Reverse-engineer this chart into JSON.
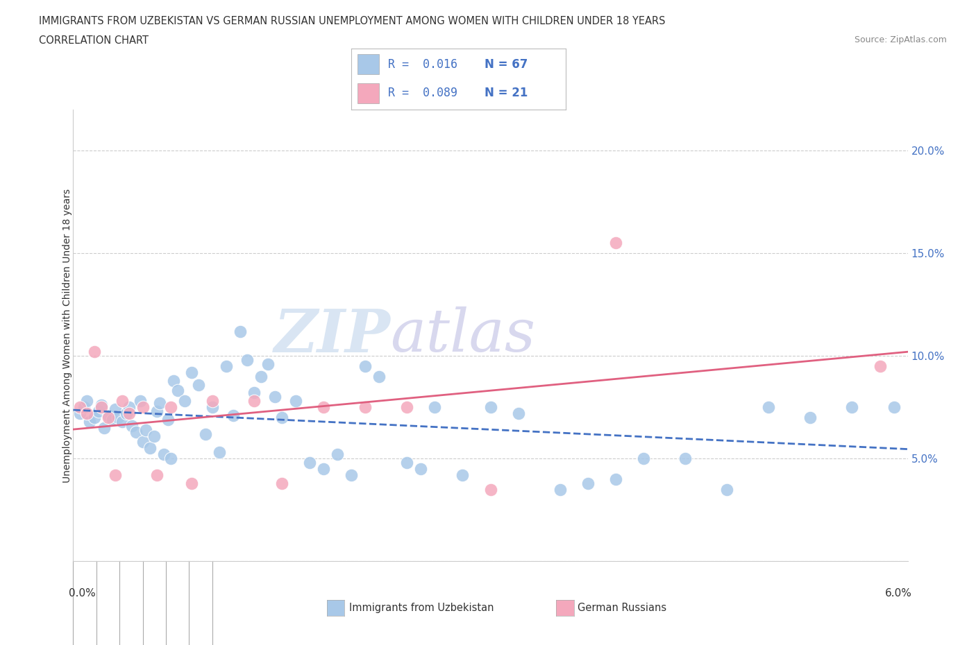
{
  "title_line1": "IMMIGRANTS FROM UZBEKISTAN VS GERMAN RUSSIAN UNEMPLOYMENT AMONG WOMEN WITH CHILDREN UNDER 18 YEARS",
  "title_line2": "CORRELATION CHART",
  "source": "Source: ZipAtlas.com",
  "ylabel": "Unemployment Among Women with Children Under 18 years",
  "xlim": [
    0.0,
    6.0
  ],
  "ylim": [
    0.0,
    22.0
  ],
  "legend_r1": "R = 0.016",
  "legend_n1": "N = 67",
  "legend_r2": "R = 0.089",
  "legend_n2": "N = 21",
  "color_uzbek": "#a8c8e8",
  "color_german": "#f4a8bc",
  "color_uzbek_line": "#4472c4",
  "color_german_line": "#e06080",
  "watermark_zip": "ZIP",
  "watermark_atlas": "atlas",
  "uzbek_x": [
    0.05,
    0.08,
    0.1,
    0.12,
    0.15,
    0.18,
    0.2,
    0.22,
    0.25,
    0.28,
    0.3,
    0.32,
    0.35,
    0.38,
    0.4,
    0.42,
    0.45,
    0.48,
    0.5,
    0.52,
    0.55,
    0.58,
    0.6,
    0.62,
    0.65,
    0.68,
    0.7,
    0.72,
    0.75,
    0.8,
    0.85,
    0.9,
    0.95,
    1.0,
    1.05,
    1.1,
    1.15,
    1.2,
    1.25,
    1.3,
    1.35,
    1.4,
    1.45,
    1.5,
    1.6,
    1.7,
    1.8,
    1.9,
    2.0,
    2.1,
    2.2,
    2.4,
    2.5,
    2.6,
    2.8,
    3.0,
    3.2,
    3.5,
    3.7,
    3.9,
    4.1,
    4.4,
    4.7,
    5.0,
    5.3,
    5.6,
    5.9
  ],
  "uzbek_y": [
    7.2,
    7.5,
    7.8,
    6.8,
    7.0,
    7.3,
    7.6,
    6.5,
    7.1,
    6.9,
    7.4,
    7.0,
    6.8,
    7.2,
    7.5,
    6.6,
    6.3,
    7.8,
    5.8,
    6.4,
    5.5,
    6.1,
    7.3,
    7.7,
    5.2,
    6.9,
    5.0,
    8.8,
    8.3,
    7.8,
    9.2,
    8.6,
    6.2,
    7.5,
    5.3,
    9.5,
    7.1,
    11.2,
    9.8,
    8.2,
    9.0,
    9.6,
    8.0,
    7.0,
    7.8,
    4.8,
    4.5,
    5.2,
    4.2,
    9.5,
    9.0,
    4.8,
    4.5,
    7.5,
    4.2,
    7.5,
    7.2,
    3.5,
    3.8,
    4.0,
    5.0,
    5.0,
    3.5,
    7.5,
    7.0,
    7.5,
    7.5
  ],
  "german_x": [
    0.05,
    0.1,
    0.15,
    0.2,
    0.25,
    0.3,
    0.35,
    0.4,
    0.5,
    0.6,
    0.7,
    0.85,
    1.0,
    1.3,
    1.5,
    1.8,
    2.1,
    2.4,
    3.0,
    5.8,
    3.9
  ],
  "german_y": [
    7.5,
    7.2,
    10.2,
    7.5,
    7.0,
    4.2,
    7.8,
    7.2,
    7.5,
    4.2,
    7.5,
    3.8,
    7.8,
    7.8,
    3.8,
    7.5,
    7.5,
    7.5,
    3.5,
    9.5,
    15.5
  ]
}
